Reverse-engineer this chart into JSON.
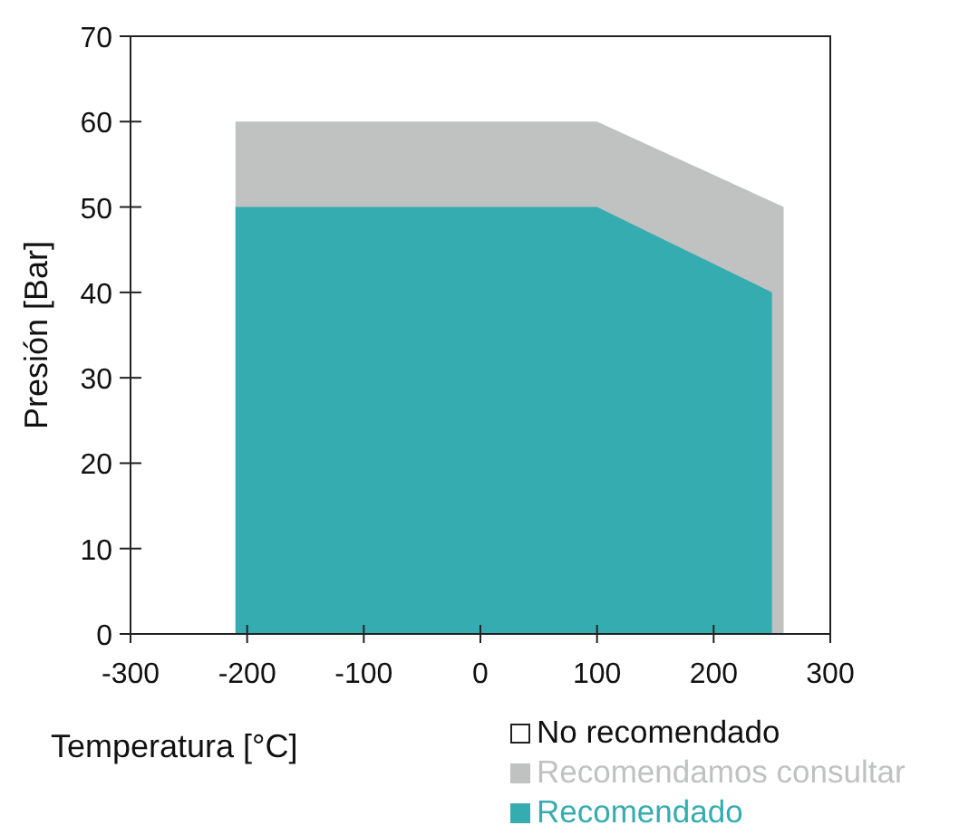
{
  "chart_data": {
    "type": "area",
    "xlabel": "Temperatura [°C]",
    "ylabel": "Presión [Bar]",
    "xlim": [
      -300,
      300
    ],
    "xticks": [
      -300,
      -200,
      -100,
      0,
      100,
      200,
      300
    ],
    "ylim": [
      0,
      70
    ],
    "yticks": [
      0,
      10,
      20,
      30,
      40,
      50,
      60,
      70
    ],
    "grid": false,
    "legend": "bottom right",
    "series": [
      {
        "name": "No recomendado",
        "color": "#ffffff"
      },
      {
        "name": "Recomendamos consultar",
        "color": "#c0c1c1",
        "x": [
          -210,
          100,
          260
        ],
        "values": [
          60,
          60,
          50
        ]
      },
      {
        "name": "Recomendado",
        "color": "#35adb0",
        "x": [
          -210,
          100,
          250
        ],
        "values": [
          50,
          50,
          40
        ]
      }
    ]
  }
}
